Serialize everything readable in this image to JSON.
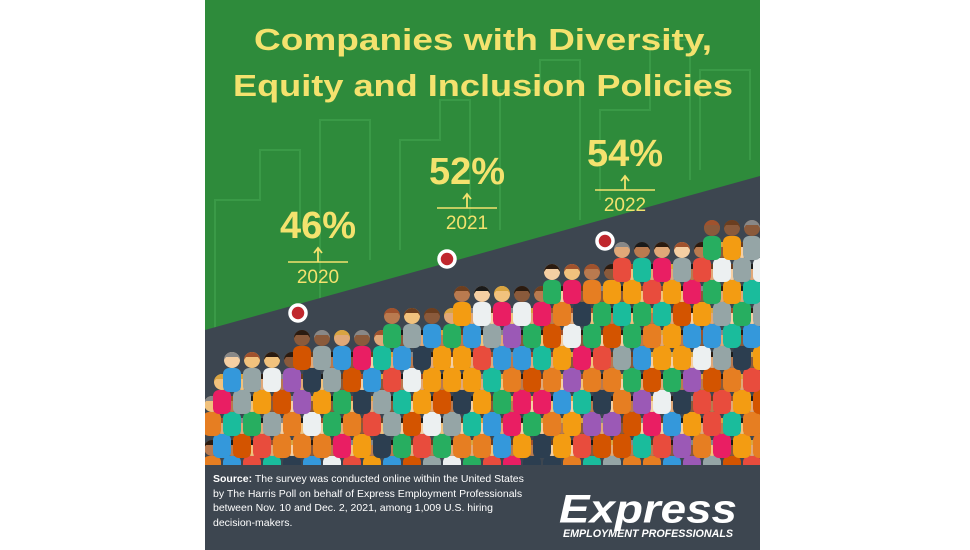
{
  "chart_data": {
    "type": "line",
    "title": [
      "Companies with Diversity,",
      "Equity and Inclusion Policies"
    ],
    "categories": [
      "2020",
      "2021",
      "2022"
    ],
    "values": [
      46,
      52,
      54
    ],
    "value_labels": [
      "46%",
      "52%",
      "54%"
    ],
    "color": "#c0272d"
  },
  "source": {
    "label": "Source:",
    "text": "The survey was conducted online within the United States by The Harris Poll on behalf of Express Employment Professionals between Nov. 10 and Dec. 2, 2021, among 1,009 U.S. hiring decision-makers."
  },
  "logo": {
    "name": "Express",
    "tagline": "EMPLOYMENT PROFESSIONALS"
  }
}
